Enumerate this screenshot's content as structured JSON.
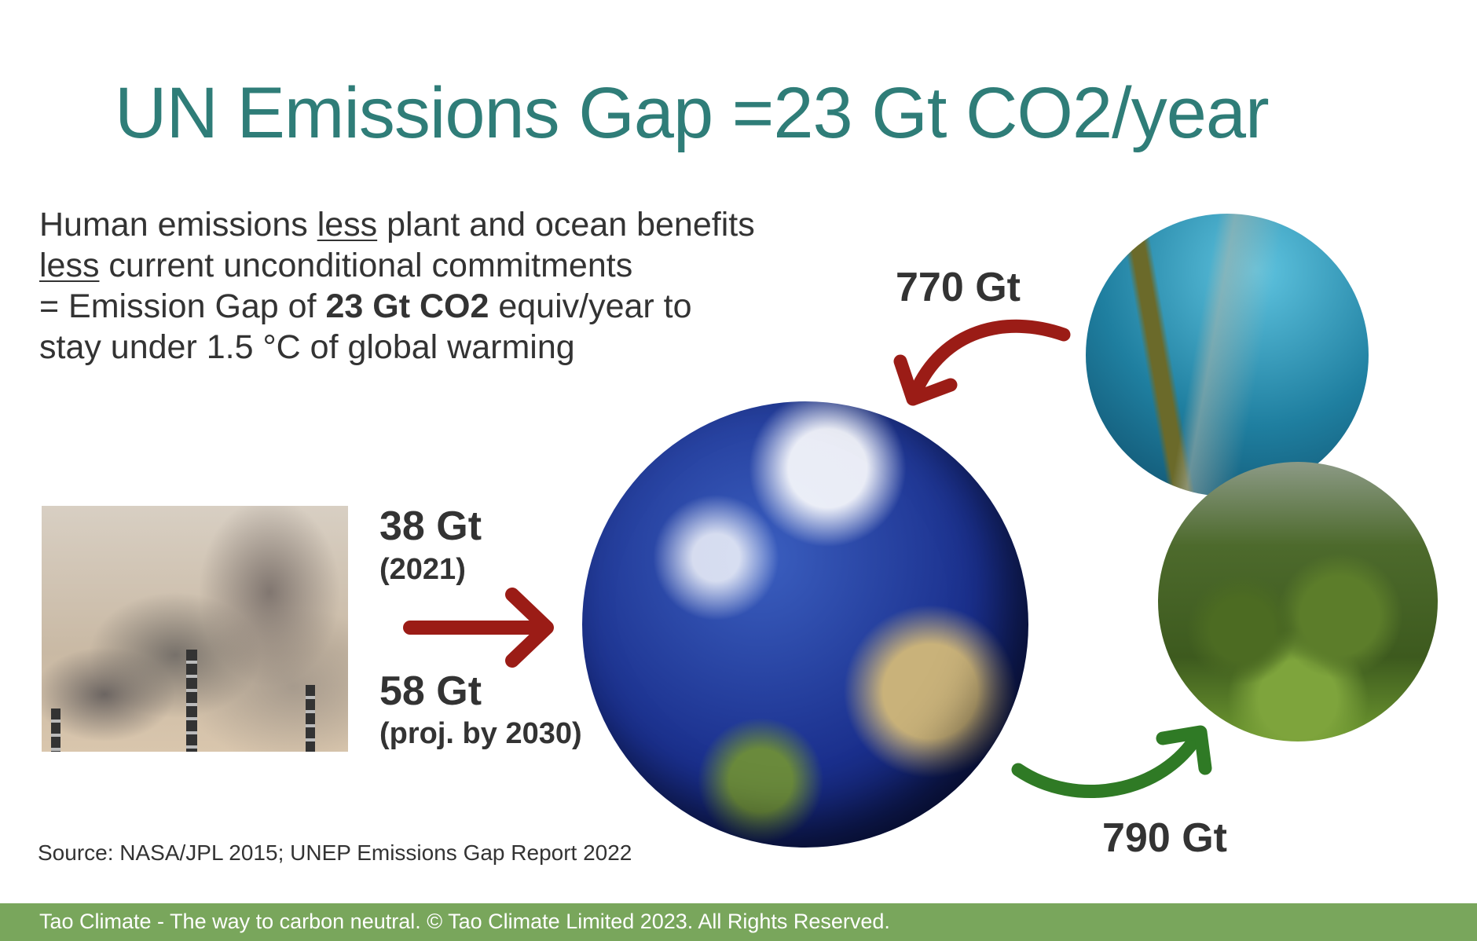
{
  "title": "UN Emissions Gap =23 Gt CO2/year",
  "body": {
    "line1_a": "Human emissions ",
    "line1_u": "less",
    "line1_b": " plant and ocean benefits",
    "line2_u": "less",
    "line2_b": " current unconditional commitments",
    "line3_a": "= Emission Gap of ",
    "line3_bold": "23 Gt CO2",
    "line3_b": " equiv/year to",
    "line4": "stay under 1.5 °C of global warming"
  },
  "emissions": {
    "current_value": "38 Gt",
    "current_year": "(2021)",
    "projected_value": "58 Gt",
    "projected_note": "(proj. by 2030)"
  },
  "ocean_flow": "770 Gt",
  "land_flow": "790 Gt",
  "source": "Source: NASA/JPL 2015; UNEP Emissions Gap Report 2022",
  "footer": "Tao Climate - The way to carbon neutral. © Tao Climate Limited 2023. All Rights Reserved.",
  "colors": {
    "title": "#2f7d78",
    "red_arrow": "#9b1c16",
    "green_arrow": "#2f7a25",
    "footer_bg": "#79a65c"
  }
}
